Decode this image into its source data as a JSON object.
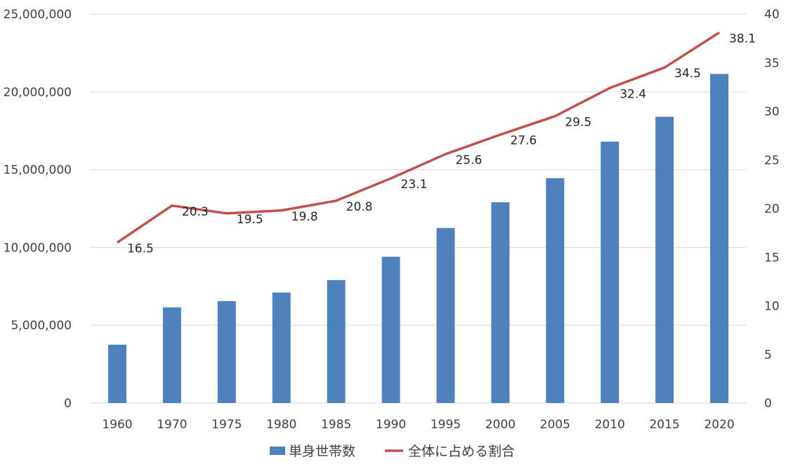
{
  "chart_data": {
    "type": "bar",
    "title": "",
    "xlabel": "",
    "ylabel": "",
    "categories": [
      "1960",
      "1970",
      "1975",
      "1980",
      "1985",
      "1990",
      "1995",
      "2000",
      "2005",
      "2010",
      "2015",
      "2020"
    ],
    "ylim": [
      0,
      25000000
    ],
    "y_ticks": [
      "0",
      "5,000,000",
      "10,000,000",
      "15,000,000",
      "20,000,000",
      "25,000,000"
    ],
    "y2lim": [
      0,
      40
    ],
    "y2_ticks": [
      "0",
      "5",
      "10",
      "15",
      "20",
      "25",
      "30",
      "35",
      "40"
    ],
    "grid": true,
    "legend_position": "bottom",
    "series": [
      {
        "name": "単身世帯数",
        "type": "bar",
        "axis": "left",
        "color": "#4f81bd",
        "values": [
          3750000,
          6150000,
          6550000,
          7100000,
          7900000,
          9400000,
          11250000,
          12900000,
          14450000,
          16800000,
          18400000,
          21150000
        ]
      },
      {
        "name": "全体に占める割合",
        "type": "line",
        "axis": "right",
        "color": "#c0504d",
        "values": [
          16.5,
          20.3,
          19.5,
          19.8,
          20.8,
          23.1,
          25.6,
          27.6,
          29.5,
          32.4,
          34.5,
          38.1
        ],
        "labels": [
          "16.5",
          "20.3",
          "19.5",
          "19.8",
          "20.8",
          "23.1",
          "25.6",
          "27.6",
          "29.5",
          "32.4",
          "34.5",
          "38.1"
        ]
      }
    ]
  }
}
